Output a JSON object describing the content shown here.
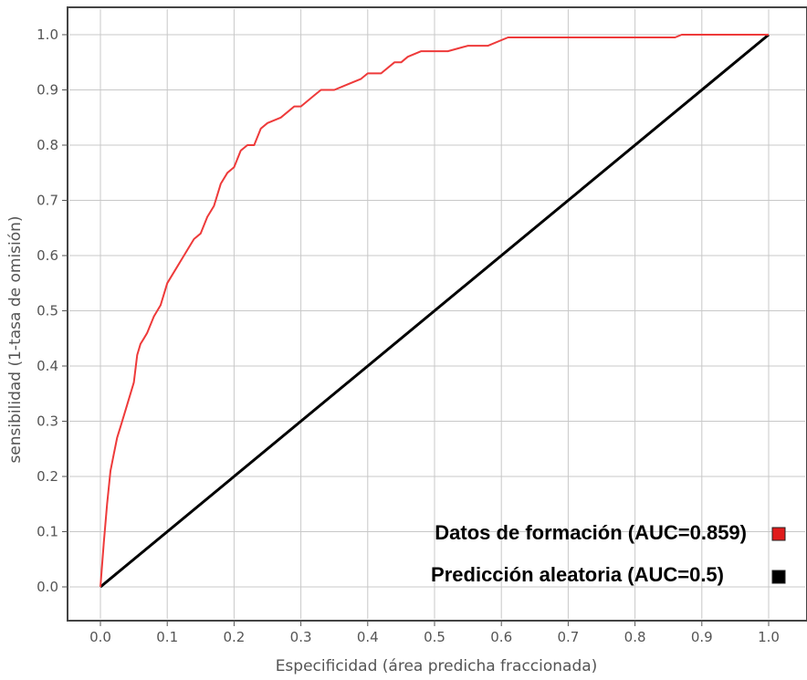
{
  "chart_data": {
    "type": "line",
    "xlabel": "Especificidad (área predicha fraccionada)",
    "ylabel": "sensibilidad (1-tasa de omisión)",
    "xlim": [
      -0.05,
      1.05
    ],
    "ylim": [
      -0.05,
      1.05
    ],
    "x_ticks": [
      "0.0",
      "0.1",
      "0.2",
      "0.3",
      "0.4",
      "0.5",
      "0.6",
      "0.7",
      "0.8",
      "0.9",
      "1.0"
    ],
    "y_ticks": [
      "0.0",
      "0.1",
      "0.2",
      "0.3",
      "0.4",
      "0.5",
      "0.6",
      "0.7",
      "0.8",
      "0.9",
      "1.0"
    ],
    "grid": true,
    "legend_position": "bottom-right",
    "series": [
      {
        "name": "Datos de formación (AUC=0.859)",
        "color": "#ee3a3a",
        "x": [
          0.0,
          0.005,
          0.01,
          0.015,
          0.02,
          0.025,
          0.03,
          0.04,
          0.05,
          0.055,
          0.06,
          0.065,
          0.07,
          0.08,
          0.09,
          0.1,
          0.11,
          0.12,
          0.13,
          0.14,
          0.15,
          0.16,
          0.17,
          0.18,
          0.19,
          0.2,
          0.21,
          0.22,
          0.23,
          0.24,
          0.25,
          0.27,
          0.28,
          0.29,
          0.3,
          0.32,
          0.33,
          0.34,
          0.35,
          0.37,
          0.39,
          0.4,
          0.42,
          0.44,
          0.45,
          0.46,
          0.48,
          0.5,
          0.52,
          0.55,
          0.58,
          0.6,
          0.61,
          0.7,
          0.8,
          0.86,
          0.87,
          0.95,
          1.0
        ],
        "y": [
          0.0,
          0.08,
          0.15,
          0.21,
          0.24,
          0.27,
          0.29,
          0.33,
          0.37,
          0.42,
          0.44,
          0.45,
          0.46,
          0.49,
          0.51,
          0.55,
          0.57,
          0.59,
          0.61,
          0.63,
          0.64,
          0.67,
          0.69,
          0.73,
          0.75,
          0.76,
          0.79,
          0.8,
          0.8,
          0.83,
          0.84,
          0.85,
          0.86,
          0.87,
          0.87,
          0.89,
          0.9,
          0.9,
          0.9,
          0.91,
          0.92,
          0.93,
          0.93,
          0.95,
          0.95,
          0.96,
          0.97,
          0.97,
          0.97,
          0.98,
          0.98,
          0.99,
          0.995,
          0.995,
          0.995,
          0.995,
          1.0,
          1.0,
          1.0
        ]
      },
      {
        "name": "Predicción aleatoria (AUC=0.5)",
        "color": "#000000",
        "x": [
          0.0,
          1.0
        ],
        "y": [
          0.0,
          1.0
        ]
      }
    ]
  }
}
